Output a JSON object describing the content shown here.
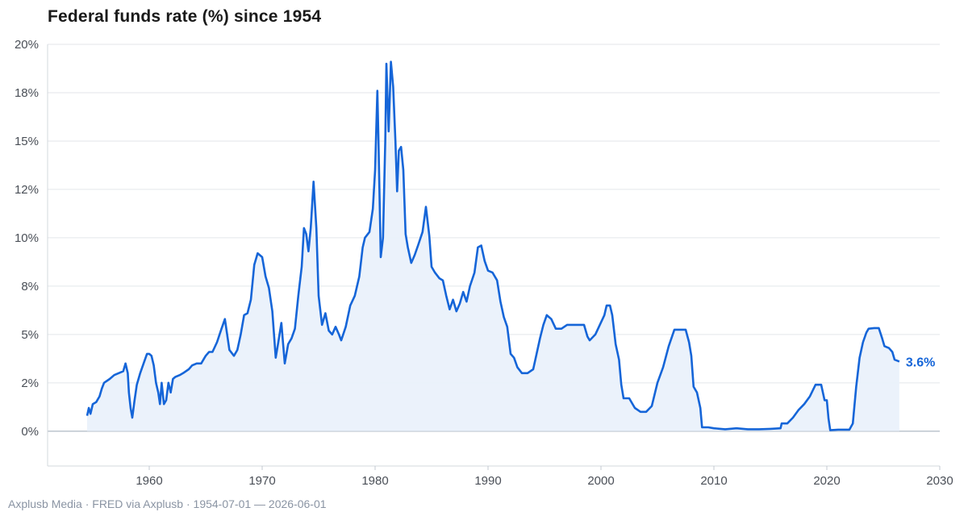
{
  "title": "Federal funds rate (%) since 1954",
  "footer": "Axplusb Media · FRED via Axplusb · 1954-07-01 — 2026-06-01",
  "colors": {
    "line": "#1565d8",
    "fill": "#eaf1fb",
    "grid": "#e3e6ea",
    "axis": "#9aa6b4"
  },
  "chart_data": {
    "type": "area",
    "title": "Federal funds rate (%) since 1954",
    "xlabel": "",
    "ylabel": "",
    "xlim": [
      1951,
      2030
    ],
    "ylim": [
      -1.8,
      20
    ],
    "x_ticks": [
      {
        "value": 1960,
        "label": "1960"
      },
      {
        "value": 1970,
        "label": "1970"
      },
      {
        "value": 1980,
        "label": "1980"
      },
      {
        "value": 1990,
        "label": "1990"
      },
      {
        "value": 2000,
        "label": "2000"
      },
      {
        "value": 2010,
        "label": "2010"
      },
      {
        "value": 2020,
        "label": "2020"
      },
      {
        "value": 2030,
        "label": "2030"
      }
    ],
    "y_ticks": [
      {
        "value": 0,
        "label": "0%"
      },
      {
        "value": 2.5,
        "label": "2%"
      },
      {
        "value": 5,
        "label": "5%"
      },
      {
        "value": 7.5,
        "label": "8%"
      },
      {
        "value": 10,
        "label": "10%"
      },
      {
        "value": 12.5,
        "label": "12%"
      },
      {
        "value": 15,
        "label": "15%"
      },
      {
        "value": 17.5,
        "label": "18%"
      },
      {
        "value": 20,
        "label": "20%"
      }
    ],
    "grid": true,
    "end_label": "3.6%",
    "series": [
      {
        "points": [
          [
            1954.5,
            0.8
          ],
          [
            1954.65,
            1.2
          ],
          [
            1954.8,
            0.9
          ],
          [
            1955.0,
            1.4
          ],
          [
            1955.3,
            1.5
          ],
          [
            1955.6,
            1.8
          ],
          [
            1955.8,
            2.2
          ],
          [
            1956.0,
            2.5
          ],
          [
            1956.5,
            2.7
          ],
          [
            1956.9,
            2.9
          ],
          [
            1957.3,
            3.0
          ],
          [
            1957.7,
            3.1
          ],
          [
            1957.9,
            3.5
          ],
          [
            1958.1,
            3.0
          ],
          [
            1958.2,
            2.0
          ],
          [
            1958.35,
            1.2
          ],
          [
            1958.5,
            0.7
          ],
          [
            1958.7,
            1.6
          ],
          [
            1958.9,
            2.4
          ],
          [
            1959.2,
            3.0
          ],
          [
            1959.5,
            3.5
          ],
          [
            1959.8,
            4.0
          ],
          [
            1960.0,
            4.0
          ],
          [
            1960.2,
            3.9
          ],
          [
            1960.4,
            3.4
          ],
          [
            1960.6,
            2.5
          ],
          [
            1960.8,
            2.0
          ],
          [
            1960.95,
            1.4
          ],
          [
            1961.1,
            2.5
          ],
          [
            1961.3,
            1.4
          ],
          [
            1961.5,
            1.6
          ],
          [
            1961.7,
            2.5
          ],
          [
            1961.9,
            2.0
          ],
          [
            1962.1,
            2.7
          ],
          [
            1962.3,
            2.8
          ],
          [
            1962.7,
            2.9
          ],
          [
            1963.0,
            3.0
          ],
          [
            1963.5,
            3.2
          ],
          [
            1963.8,
            3.4
          ],
          [
            1964.2,
            3.5
          ],
          [
            1964.6,
            3.5
          ],
          [
            1965.0,
            3.9
          ],
          [
            1965.3,
            4.1
          ],
          [
            1965.6,
            4.1
          ],
          [
            1966.0,
            4.6
          ],
          [
            1966.4,
            5.3
          ],
          [
            1966.7,
            5.8
          ],
          [
            1966.9,
            5.0
          ],
          [
            1967.1,
            4.2
          ],
          [
            1967.5,
            3.9
          ],
          [
            1967.8,
            4.2
          ],
          [
            1968.1,
            5.0
          ],
          [
            1968.4,
            6.0
          ],
          [
            1968.7,
            6.1
          ],
          [
            1969.0,
            6.8
          ],
          [
            1969.3,
            8.6
          ],
          [
            1969.6,
            9.2
          ],
          [
            1970.0,
            9.0
          ],
          [
            1970.3,
            8.0
          ],
          [
            1970.6,
            7.4
          ],
          [
            1970.9,
            6.2
          ],
          [
            1971.2,
            3.8
          ],
          [
            1971.4,
            4.5
          ],
          [
            1971.7,
            5.6
          ],
          [
            1972.0,
            3.5
          ],
          [
            1972.3,
            4.5
          ],
          [
            1972.6,
            4.8
          ],
          [
            1972.9,
            5.3
          ],
          [
            1973.2,
            7.0
          ],
          [
            1973.5,
            8.5
          ],
          [
            1973.7,
            10.5
          ],
          [
            1973.9,
            10.2
          ],
          [
            1974.1,
            9.3
          ],
          [
            1974.3,
            10.5
          ],
          [
            1974.55,
            12.9
          ],
          [
            1974.8,
            10.5
          ],
          [
            1975.0,
            7.0
          ],
          [
            1975.3,
            5.5
          ],
          [
            1975.6,
            6.1
          ],
          [
            1975.9,
            5.2
          ],
          [
            1976.2,
            5.0
          ],
          [
            1976.5,
            5.4
          ],
          [
            1976.8,
            5.0
          ],
          [
            1977.0,
            4.7
          ],
          [
            1977.4,
            5.4
          ],
          [
            1977.8,
            6.5
          ],
          [
            1978.2,
            7.0
          ],
          [
            1978.6,
            8.0
          ],
          [
            1978.9,
            9.5
          ],
          [
            1979.1,
            10.0
          ],
          [
            1979.5,
            10.3
          ],
          [
            1979.8,
            11.5
          ],
          [
            1980.0,
            13.5
          ],
          [
            1980.2,
            17.6
          ],
          [
            1980.3,
            15.0
          ],
          [
            1980.5,
            9.0
          ],
          [
            1980.7,
            10.0
          ],
          [
            1980.9,
            15.0
          ],
          [
            1981.0,
            19.0
          ],
          [
            1981.2,
            15.5
          ],
          [
            1981.4,
            19.1
          ],
          [
            1981.6,
            17.8
          ],
          [
            1981.8,
            15.0
          ],
          [
            1981.95,
            12.4
          ],
          [
            1982.1,
            14.5
          ],
          [
            1982.3,
            14.7
          ],
          [
            1982.5,
            13.5
          ],
          [
            1982.7,
            10.2
          ],
          [
            1982.9,
            9.5
          ],
          [
            1983.2,
            8.7
          ],
          [
            1983.5,
            9.1
          ],
          [
            1983.8,
            9.6
          ],
          [
            1984.2,
            10.3
          ],
          [
            1984.5,
            11.6
          ],
          [
            1984.8,
            10.1
          ],
          [
            1985.0,
            8.5
          ],
          [
            1985.3,
            8.2
          ],
          [
            1985.7,
            7.9
          ],
          [
            1986.0,
            7.8
          ],
          [
            1986.3,
            7.0
          ],
          [
            1986.6,
            6.3
          ],
          [
            1986.9,
            6.8
          ],
          [
            1987.2,
            6.2
          ],
          [
            1987.5,
            6.6
          ],
          [
            1987.8,
            7.2
          ],
          [
            1988.1,
            6.7
          ],
          [
            1988.4,
            7.5
          ],
          [
            1988.8,
            8.2
          ],
          [
            1989.1,
            9.5
          ],
          [
            1989.4,
            9.6
          ],
          [
            1989.7,
            8.8
          ],
          [
            1990.0,
            8.3
          ],
          [
            1990.4,
            8.2
          ],
          [
            1990.8,
            7.8
          ],
          [
            1991.1,
            6.7
          ],
          [
            1991.4,
            5.9
          ],
          [
            1991.7,
            5.4
          ],
          [
            1992.0,
            4.0
          ],
          [
            1992.3,
            3.8
          ],
          [
            1992.6,
            3.3
          ],
          [
            1993.0,
            3.0
          ],
          [
            1993.5,
            3.0
          ],
          [
            1994.0,
            3.2
          ],
          [
            1994.3,
            4.0
          ],
          [
            1994.6,
            4.8
          ],
          [
            1994.9,
            5.5
          ],
          [
            1995.2,
            6.0
          ],
          [
            1995.6,
            5.8
          ],
          [
            1996.0,
            5.3
          ],
          [
            1996.5,
            5.3
          ],
          [
            1997.0,
            5.5
          ],
          [
            1997.5,
            5.5
          ],
          [
            1998.0,
            5.5
          ],
          [
            1998.5,
            5.5
          ],
          [
            1998.8,
            4.9
          ],
          [
            1999.0,
            4.7
          ],
          [
            1999.5,
            5.0
          ],
          [
            1999.9,
            5.5
          ],
          [
            2000.3,
            6.0
          ],
          [
            2000.5,
            6.5
          ],
          [
            2000.8,
            6.5
          ],
          [
            2001.0,
            6.0
          ],
          [
            2001.3,
            4.5
          ],
          [
            2001.6,
            3.7
          ],
          [
            2001.8,
            2.4
          ],
          [
            2002.0,
            1.7
          ],
          [
            2002.5,
            1.7
          ],
          [
            2003.0,
            1.2
          ],
          [
            2003.5,
            1.0
          ],
          [
            2004.0,
            1.0
          ],
          [
            2004.5,
            1.3
          ],
          [
            2005.0,
            2.5
          ],
          [
            2005.5,
            3.3
          ],
          [
            2006.0,
            4.4
          ],
          [
            2006.5,
            5.25
          ],
          [
            2007.0,
            5.25
          ],
          [
            2007.5,
            5.25
          ],
          [
            2007.8,
            4.6
          ],
          [
            2008.0,
            3.9
          ],
          [
            2008.2,
            2.3
          ],
          [
            2008.5,
            2.0
          ],
          [
            2008.8,
            1.2
          ],
          [
            2008.95,
            0.2
          ],
          [
            2009.5,
            0.2
          ],
          [
            2010.0,
            0.15
          ],
          [
            2011.0,
            0.1
          ],
          [
            2012.0,
            0.15
          ],
          [
            2013.0,
            0.1
          ],
          [
            2014.0,
            0.1
          ],
          [
            2015.0,
            0.12
          ],
          [
            2015.9,
            0.15
          ],
          [
            2016.0,
            0.4
          ],
          [
            2016.5,
            0.4
          ],
          [
            2017.0,
            0.7
          ],
          [
            2017.5,
            1.1
          ],
          [
            2018.0,
            1.4
          ],
          [
            2018.5,
            1.8
          ],
          [
            2019.0,
            2.4
          ],
          [
            2019.5,
            2.4
          ],
          [
            2019.8,
            1.6
          ],
          [
            2020.0,
            1.6
          ],
          [
            2020.15,
            0.65
          ],
          [
            2020.3,
            0.05
          ],
          [
            2021.0,
            0.08
          ],
          [
            2022.0,
            0.08
          ],
          [
            2022.3,
            0.4
          ],
          [
            2022.6,
            2.3
          ],
          [
            2022.9,
            3.8
          ],
          [
            2023.2,
            4.6
          ],
          [
            2023.5,
            5.1
          ],
          [
            2023.7,
            5.3
          ],
          [
            2024.2,
            5.33
          ],
          [
            2024.6,
            5.33
          ],
          [
            2024.9,
            4.8
          ],
          [
            2025.1,
            4.4
          ],
          [
            2025.5,
            4.3
          ],
          [
            2025.8,
            4.1
          ],
          [
            2026.0,
            3.7
          ],
          [
            2026.42,
            3.6
          ]
        ]
      }
    ]
  }
}
